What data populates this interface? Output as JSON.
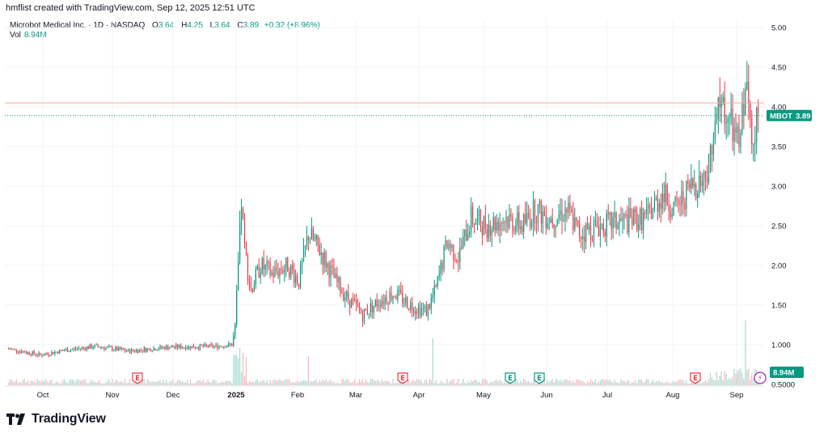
{
  "header": {
    "created_text": "hmflist created with TradingView.com, Sep 12, 2025 12:51 UTC",
    "symbol_desc": "Microbot Medical Inc. · 1D · NASDAQ",
    "ohlc": {
      "o_label": "O",
      "o_value": "3.64",
      "h_label": "H",
      "h_value": "4.25",
      "l_label": "L",
      "l_value": "3.64",
      "c_label": "C",
      "c_value": "3.89",
      "change": "+0.32 (+8.96%)"
    },
    "vol_label": "Vol",
    "vol_value": "8.94M"
  },
  "price_tag": {
    "symbol": "MBOT",
    "value": "3.89"
  },
  "volume_tag": {
    "value": "8.94M"
  },
  "footer": {
    "logo_text": "TradingView"
  },
  "colors": {
    "up": "#089981",
    "down": "#f23645",
    "up_vol": "#a5dcd3",
    "down_vol": "#f7b8bd",
    "grid": "#f0f3fa",
    "earnings": "#f23645",
    "events": "#089981",
    "dividend": "#9c27b0"
  },
  "chart_data": {
    "type": "candlestick",
    "ylim": [
      0.5,
      5.0
    ],
    "yticks": [
      "5.00",
      "4.50",
      "4.00",
      "3.50",
      "3.00",
      "2.50",
      "2.00",
      "1.50",
      "1.000",
      "0.5000"
    ],
    "xticks": [
      "Oct",
      "Nov",
      "Dec",
      "2025",
      "Feb",
      "Mar",
      "Apr",
      "May",
      "Jun",
      "Jul",
      "Aug",
      "Sep"
    ],
    "reference_line": 4.05,
    "last_close": 3.89,
    "event_markers": [
      {
        "label": "E",
        "kind": "earnings",
        "month": "Nov-Dec"
      },
      {
        "label": "E",
        "kind": "earnings",
        "month": "Mar-Apr"
      },
      {
        "label": "E",
        "kind": "events",
        "month": "May"
      },
      {
        "label": "E",
        "kind": "events",
        "month": "Jun"
      },
      {
        "label": "E",
        "kind": "earnings",
        "month": "Aug"
      },
      {
        "label": "⚡",
        "kind": "dividend",
        "month": "Sep"
      }
    ],
    "anchors": [
      [
        0,
        0.95
      ],
      [
        20,
        0.87
      ],
      [
        35,
        0.93
      ],
      [
        55,
        0.98
      ],
      [
        75,
        0.92
      ],
      [
        100,
        0.97
      ],
      [
        130,
        0.98
      ],
      [
        140,
        1.0
      ],
      [
        142,
        1.2
      ],
      [
        144,
        2.0
      ],
      [
        146,
        2.8
      ],
      [
        148,
        2.2
      ],
      [
        152,
        1.7
      ],
      [
        158,
        2.0
      ],
      [
        165,
        1.9
      ],
      [
        175,
        2.0
      ],
      [
        182,
        1.8
      ],
      [
        188,
        2.4
      ],
      [
        195,
        2.2
      ],
      [
        205,
        1.8
      ],
      [
        212,
        1.6
      ],
      [
        222,
        1.38
      ],
      [
        232,
        1.55
      ],
      [
        242,
        1.65
      ],
      [
        252,
        1.5
      ],
      [
        262,
        1.42
      ],
      [
        268,
        1.7
      ],
      [
        275,
        2.3
      ],
      [
        282,
        2.1
      ],
      [
        290,
        2.6
      ],
      [
        300,
        2.5
      ],
      [
        312,
        2.6
      ],
      [
        322,
        2.5
      ],
      [
        330,
        2.7
      ],
      [
        340,
        2.6
      ],
      [
        350,
        2.7
      ],
      [
        358,
        2.4
      ],
      [
        370,
        2.5
      ],
      [
        385,
        2.55
      ],
      [
        400,
        2.6
      ],
      [
        410,
        2.9
      ],
      [
        418,
        2.7
      ],
      [
        428,
        3.0
      ],
      [
        436,
        3.1
      ],
      [
        442,
        3.5
      ],
      [
        446,
        4.1
      ],
      [
        452,
        3.8
      ],
      [
        458,
        3.5
      ],
      [
        462,
        4.3
      ],
      [
        466,
        3.7
      ],
      [
        470,
        3.89
      ]
    ],
    "volume_scale_max": 13
  }
}
